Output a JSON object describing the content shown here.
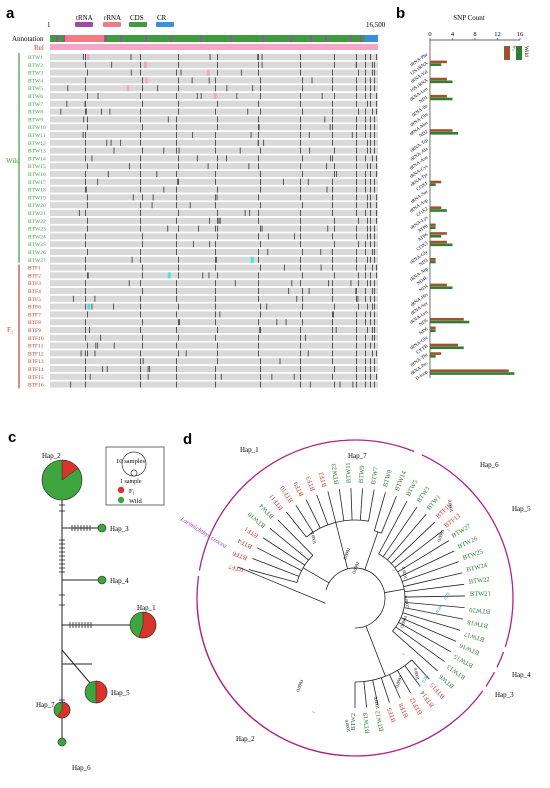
{
  "panels": {
    "a": "a",
    "b": "b",
    "c": "c",
    "d": "d"
  },
  "panel_a": {
    "legend": [
      {
        "label": "tRNA",
        "color": "#a24aa8"
      },
      {
        "label": "rRNA",
        "color": "#f27c86"
      },
      {
        "label": "CDS",
        "color": "#3f9b3f"
      },
      {
        "label": "CR",
        "color": "#3a8de0"
      }
    ],
    "scale_start": "1",
    "scale_end": "16,500",
    "annotation_label": "Annotation",
    "ref_label": "Ref",
    "group_wild": "Wild",
    "group_f1": "F₁",
    "wild_samples": [
      "BTW1",
      "BTW2",
      "BTW3",
      "BTW4",
      "BTW5",
      "BTW6",
      "BTW7",
      "BTW8",
      "BTW9",
      "BTW10",
      "BTW11",
      "BTW12",
      "BTW13",
      "BTW14",
      "BTW15",
      "BTW16",
      "BTW17",
      "BTW18",
      "BTW19",
      "BTW20",
      "BTW21",
      "BTW22",
      "BTW23",
      "BTW24",
      "BTW25",
      "BTW26",
      "BTW27"
    ],
    "f1_samples": [
      "BTF1",
      "BTF2",
      "BTF3",
      "BTF4",
      "BTF5",
      "BTF6",
      "BTF7",
      "BTF8",
      "BTF9",
      "BTF10",
      "BTF11",
      "BTF12",
      "BTF13",
      "BTF14",
      "BTF15",
      "BTF16"
    ],
    "colors": {
      "wild": "#3f9b3f",
      "f1": "#c0392b",
      "track": "#d9d9d9",
      "snp": "#555555"
    }
  },
  "panel_b": {
    "title": "SNP Count",
    "ticks": [
      "0",
      "4",
      "8",
      "12",
      "16"
    ],
    "legend": [
      {
        "label": "F₁",
        "color": "#a0522d"
      },
      {
        "label": "Wild",
        "color": "#2e7d32"
      }
    ]
  },
  "chart_data": {
    "type": "bar",
    "title": "SNP Count",
    "xlim": [
      0,
      16
    ],
    "categories": [
      "tRNA-Phe",
      "12S rRNA",
      "tRNA-Val",
      "16S rRNA",
      "tRNA-Leu",
      "ND1",
      "tRNA-Ile",
      "tRNA-Gln",
      "tRNA-Met",
      "ND2",
      "tRNA-Trp",
      "tRNA-Ala",
      "tRNA-Asn",
      "tRNA-Cys",
      "tRNA-Tyr",
      "COX1",
      "tRNA-Ser",
      "tRNA-Asp",
      "COX2",
      "tRNA-Lys",
      "ATP8",
      "ATP6",
      "COX3",
      "tRNA-Gly",
      "ND3",
      "tRNA-Arg",
      "ND4L",
      "ND4",
      "tRNA-His",
      "tRNA-Ser",
      "tRNA-Leu",
      "ND5",
      "ND6",
      "tRNA-Glu",
      "CYTB",
      "tRNA-Thr",
      "tRNA-Pro",
      "D-loop"
    ],
    "series": [
      {
        "name": "F₁",
        "values": [
          0,
          3,
          0,
          3,
          0,
          3,
          0,
          0,
          0,
          4,
          0,
          0,
          0,
          0,
          0,
          2,
          0,
          0,
          2,
          0,
          1,
          3,
          3,
          0,
          1,
          0,
          0,
          3,
          0,
          0,
          0,
          6,
          1,
          0,
          5,
          2,
          0,
          14
        ]
      },
      {
        "name": "Wild",
        "values": [
          0,
          2,
          0,
          4,
          0,
          4,
          0,
          0,
          0,
          5,
          0,
          0,
          0,
          0,
          0,
          1,
          0,
          0,
          3,
          0,
          1,
          2,
          4,
          0,
          1,
          0,
          0,
          4,
          0,
          0,
          0,
          7,
          1,
          0,
          6,
          1,
          0,
          15
        ]
      }
    ]
  },
  "panel_c": {
    "scale_big": "10 samples",
    "scale_small": "1 sample",
    "legend": [
      {
        "label": "F₁",
        "color": "#d9342b"
      },
      {
        "label": "Wild",
        "color": "#3fa63f"
      }
    ],
    "haplotypes": [
      "Hap_2",
      "Hap_3",
      "Hap_4",
      "Hap_1",
      "Hap_5",
      "Hap_7",
      "Hap_6"
    ]
  },
  "panel_d": {
    "outgroup": "Larimichthys crocea",
    "haps": [
      "Hap_7",
      "Hap_6",
      "Hap_5",
      "Hap_4",
      "Hap_3",
      "Hap_2",
      "Hap_1"
    ],
    "tips": [
      {
        "l": "BTF7",
        "c": "f"
      },
      {
        "l": "BTF6",
        "c": "f"
      },
      {
        "l": "BTF4",
        "c": "f"
      },
      {
        "l": "BTF1",
        "c": "f"
      },
      {
        "l": "BTW10",
        "c": "w"
      },
      {
        "l": "BTW4",
        "c": "w"
      },
      {
        "l": "BTF11",
        "c": "f"
      },
      {
        "l": "BTF10",
        "c": "f"
      },
      {
        "l": "BTF9",
        "c": "f"
      },
      {
        "l": "BTF3",
        "c": "f"
      },
      {
        "l": "BTF2",
        "c": "f"
      },
      {
        "l": "BTW23",
        "c": "w"
      },
      {
        "l": "BTW11",
        "c": "w"
      },
      {
        "l": "BTW9",
        "c": "w"
      },
      {
        "l": "BTW7",
        "c": "w"
      },
      {
        "l": "BTW8",
        "c": "w"
      },
      {
        "l": "BTW14",
        "c": "w"
      },
      {
        "l": "BTW5",
        "c": "w"
      },
      {
        "l": "BTW3",
        "c": "w"
      },
      {
        "l": "BTW1",
        "c": "w"
      },
      {
        "l": "BTF16",
        "c": "f"
      },
      {
        "l": "BTF13",
        "c": "f"
      },
      {
        "l": "BTW27",
        "c": "w"
      },
      {
        "l": "BTW26",
        "c": "w"
      },
      {
        "l": "BTW25",
        "c": "w"
      },
      {
        "l": "BTW24",
        "c": "w"
      },
      {
        "l": "BTW22",
        "c": "w"
      },
      {
        "l": "BTW21",
        "c": "w"
      },
      {
        "l": "BTW20",
        "c": "w"
      },
      {
        "l": "BTW18",
        "c": "w"
      },
      {
        "l": "BTW17",
        "c": "w"
      },
      {
        "l": "BTW16",
        "c": "w"
      },
      {
        "l": "BTW15",
        "c": "w"
      },
      {
        "l": "BTW13",
        "c": "w"
      },
      {
        "l": "BTW6",
        "c": "w"
      },
      {
        "l": "BTF15",
        "c": "f"
      },
      {
        "l": "BTF14",
        "c": "f"
      },
      {
        "l": "BTF12",
        "c": "f"
      },
      {
        "l": "BTF8",
        "c": "f"
      },
      {
        "l": "BTF5",
        "c": "f"
      },
      {
        "l": "BTW12",
        "c": "w"
      },
      {
        "l": "BTW19",
        "c": "w"
      },
      {
        "l": "BTW2",
        "c": "w"
      }
    ],
    "support_values": [
      "0.0001",
      "0.0001",
      "0.0001",
      "0.0003",
      "0.0007",
      "0.0005",
      "0.0001",
      "0.0007",
      "0.0001",
      "0.0003",
      "0.0001",
      "0.0002",
      "0.0001"
    ],
    "blue_labels": [
      "1",
      "1",
      "1",
      "0.25",
      "0.84",
      "1",
      "0.88",
      "1"
    ]
  }
}
